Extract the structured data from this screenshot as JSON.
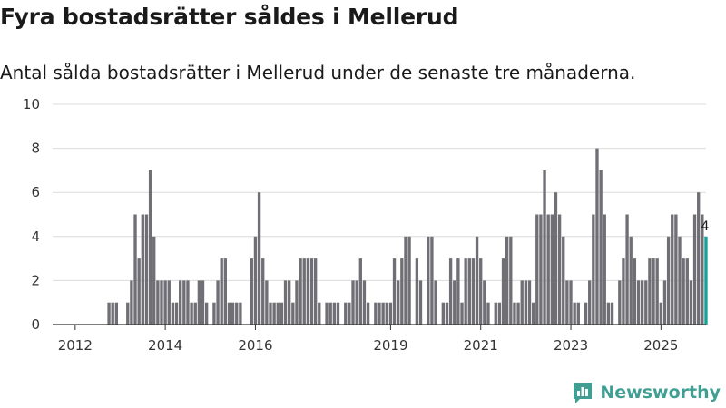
{
  "title": "Fyra bostadsrätter såldes i Mellerud",
  "subtitle": "Antal sålda bostadsrätter i Mellerud under de senaste tre månaderna.",
  "brand": {
    "name": "Newsworthy",
    "icon": "newsworthy-logo-icon",
    "color": "#3f9f92"
  },
  "colors": {
    "bar": "#6f6f75",
    "highlight": "#18a09a",
    "grid": "#dcdcdc",
    "axis": "#333333"
  },
  "chart_data": {
    "type": "bar",
    "title": "Fyra bostadsrätter såldes i Mellerud",
    "xlabel": "",
    "ylabel": "",
    "ylim": [
      0,
      10
    ],
    "yticks": [
      0,
      2,
      4,
      6,
      8,
      10
    ],
    "xlim": [
      2011.5,
      2026.0
    ],
    "xticks": [
      {
        "label": "2012",
        "value": 2012.0
      },
      {
        "label": "2014",
        "value": 2014.0
      },
      {
        "label": "2016",
        "value": 2016.0
      },
      {
        "label": "2019",
        "value": 2019.0
      },
      {
        "label": "2021",
        "value": 2021.0
      },
      {
        "label": "2023",
        "value": 2023.0
      },
      {
        "label": "2025",
        "value": 2025.0
      }
    ],
    "start": 2012.75,
    "step": 0.08333,
    "series": [
      {
        "name": "Sålda bostadsrätter",
        "values": [
          1,
          1,
          1,
          0,
          0,
          1,
          2,
          5,
          3,
          5,
          5,
          7,
          4,
          2,
          2,
          2,
          2,
          1,
          1,
          2,
          2,
          2,
          1,
          1,
          2,
          2,
          1,
          0,
          1,
          2,
          3,
          3,
          1,
          1,
          1,
          1,
          0,
          0,
          3,
          4,
          6,
          3,
          2,
          1,
          1,
          1,
          1,
          2,
          2,
          1,
          2,
          3,
          3,
          3,
          3,
          3,
          1,
          0,
          1,
          1,
          1,
          1,
          0,
          1,
          1,
          2,
          2,
          3,
          2,
          1,
          0,
          1,
          1,
          1,
          1,
          1,
          3,
          2,
          3,
          4,
          4,
          0,
          3,
          2,
          0,
          4,
          4,
          2,
          0,
          1,
          1,
          3,
          2,
          3,
          1,
          3,
          3,
          3,
          4,
          3,
          2,
          1,
          0,
          1,
          1,
          3,
          4,
          4,
          1,
          1,
          2,
          2,
          2,
          1,
          5,
          5,
          7,
          5,
          5,
          6,
          5,
          4,
          2,
          2,
          1,
          1,
          0,
          1,
          2,
          5,
          8,
          7,
          5,
          1,
          1,
          0,
          2,
          3,
          5,
          4,
          3,
          2,
          2,
          2,
          3,
          3,
          3,
          1,
          2,
          4,
          5,
          5,
          4,
          3,
          3,
          2,
          5,
          6,
          5,
          4
        ]
      }
    ],
    "highlight": {
      "index": 159,
      "value": 4,
      "label": "4"
    }
  }
}
